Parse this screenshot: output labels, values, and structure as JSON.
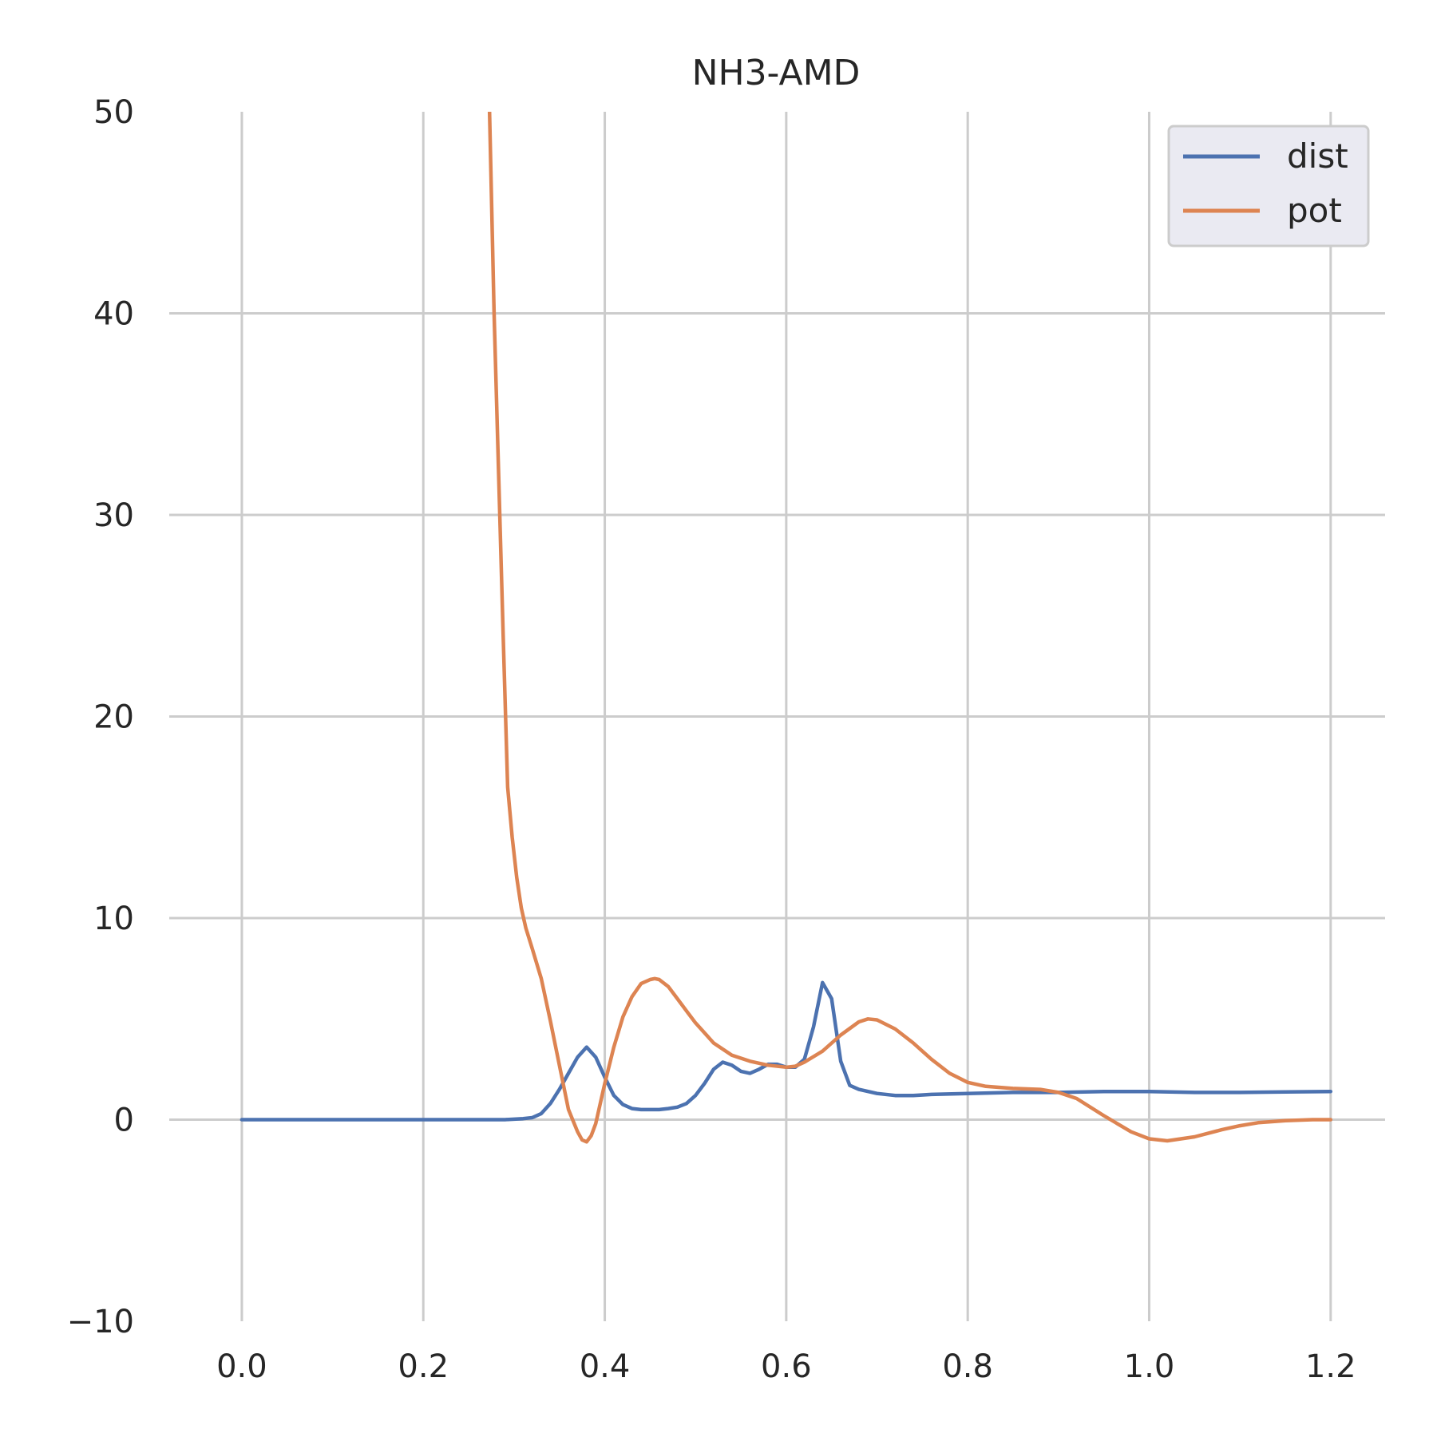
{
  "chart_data": {
    "type": "line",
    "title": "NH3-AMD",
    "xlabel": "",
    "ylabel": "",
    "xlim": [
      -0.08,
      1.26
    ],
    "ylim": [
      -10,
      50
    ],
    "xticks": [
      0.0,
      0.2,
      0.4,
      0.6,
      0.8,
      1.0,
      1.2
    ],
    "xtick_labels": [
      "0.0",
      "0.2",
      "0.4",
      "0.6",
      "0.8",
      "1.0",
      "1.2"
    ],
    "yticks": [
      -10,
      0,
      10,
      20,
      30,
      40,
      50
    ],
    "ytick_labels": [
      "−10",
      "0",
      "10",
      "20",
      "30",
      "40",
      "50"
    ],
    "grid": true,
    "legend_position": "top-right",
    "series": [
      {
        "name": "dist",
        "color": "#4c72b0",
        "x": [
          0.0,
          0.05,
          0.1,
          0.15,
          0.2,
          0.25,
          0.29,
          0.31,
          0.32,
          0.33,
          0.34,
          0.35,
          0.36,
          0.37,
          0.38,
          0.39,
          0.4,
          0.41,
          0.42,
          0.43,
          0.44,
          0.45,
          0.46,
          0.47,
          0.48,
          0.49,
          0.5,
          0.51,
          0.52,
          0.53,
          0.54,
          0.55,
          0.56,
          0.57,
          0.58,
          0.59,
          0.6,
          0.61,
          0.62,
          0.63,
          0.64,
          0.65,
          0.66,
          0.67,
          0.68,
          0.7,
          0.72,
          0.74,
          0.76,
          0.8,
          0.85,
          0.9,
          0.95,
          1.0,
          1.05,
          1.1,
          1.15,
          1.2
        ],
        "y": [
          0,
          0,
          0,
          0,
          0,
          0,
          0,
          0.05,
          0.1,
          0.3,
          0.8,
          1.5,
          2.3,
          3.1,
          3.6,
          3.1,
          2.1,
          1.2,
          0.75,
          0.55,
          0.5,
          0.5,
          0.5,
          0.55,
          0.62,
          0.8,
          1.2,
          1.8,
          2.5,
          2.85,
          2.7,
          2.4,
          2.3,
          2.5,
          2.75,
          2.75,
          2.6,
          2.6,
          3.0,
          4.6,
          6.8,
          6.0,
          2.9,
          1.7,
          1.5,
          1.3,
          1.2,
          1.2,
          1.25,
          1.3,
          1.35,
          1.35,
          1.4,
          1.4,
          1.35,
          1.35,
          1.38,
          1.4
        ]
      },
      {
        "name": "pot",
        "color": "#dd8452",
        "x": [
          0.273,
          0.278,
          0.283,
          0.288,
          0.293,
          0.298,
          0.303,
          0.308,
          0.313,
          0.32,
          0.33,
          0.34,
          0.35,
          0.36,
          0.37,
          0.375,
          0.38,
          0.385,
          0.39,
          0.395,
          0.4,
          0.41,
          0.42,
          0.43,
          0.44,
          0.45,
          0.455,
          0.46,
          0.47,
          0.48,
          0.49,
          0.5,
          0.52,
          0.54,
          0.56,
          0.58,
          0.6,
          0.61,
          0.62,
          0.64,
          0.66,
          0.68,
          0.69,
          0.7,
          0.72,
          0.74,
          0.76,
          0.78,
          0.8,
          0.82,
          0.85,
          0.88,
          0.9,
          0.92,
          0.95,
          0.98,
          1.0,
          1.02,
          1.05,
          1.08,
          1.1,
          1.12,
          1.15,
          1.18,
          1.2
        ],
        "y": [
          50,
          40,
          32,
          24,
          16.5,
          14,
          12,
          10.5,
          9.5,
          8.5,
          7,
          4.9,
          2.7,
          0.5,
          -0.6,
          -1.0,
          -1.1,
          -0.8,
          -0.2,
          0.8,
          1.8,
          3.6,
          5.1,
          6.1,
          6.75,
          6.95,
          7.0,
          6.95,
          6.6,
          6.0,
          5.4,
          4.8,
          3.8,
          3.2,
          2.9,
          2.7,
          2.6,
          2.65,
          2.85,
          3.4,
          4.2,
          4.85,
          5.0,
          4.95,
          4.5,
          3.8,
          3.0,
          2.3,
          1.85,
          1.65,
          1.55,
          1.5,
          1.35,
          1.05,
          0.2,
          -0.6,
          -0.95,
          -1.05,
          -0.85,
          -0.5,
          -0.3,
          -0.15,
          -0.05,
          0,
          0
        ]
      }
    ]
  }
}
